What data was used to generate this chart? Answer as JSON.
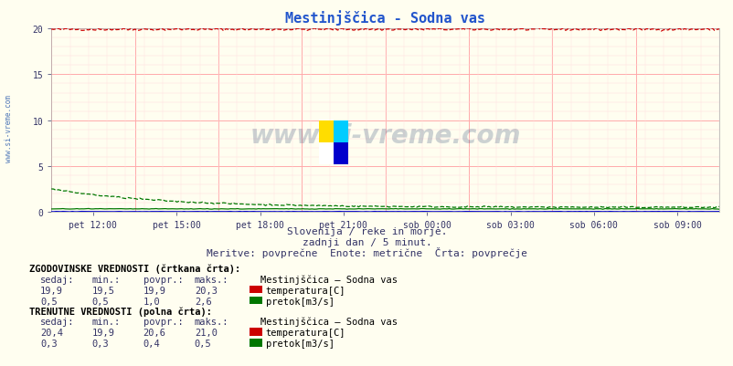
{
  "title": "Mestinjščica - Sodna vas",
  "bg_color": "#fffef0",
  "plot_bg_color": "#fffef0",
  "x_labels": [
    "pet 12:00",
    "pet 15:00",
    "pet 18:00",
    "pet 21:00",
    "sob 00:00",
    "sob 03:00",
    "sob 06:00",
    "sob 09:00"
  ],
  "ylim": [
    0,
    20
  ],
  "yticks": [
    0,
    5,
    10,
    15,
    20
  ],
  "temp_color": "#cc0000",
  "flow_color": "#007700",
  "height_color": "#0000cc",
  "grid_color_major": "#ffaaaa",
  "grid_color_minor": "#ffdddd",
  "watermark_text": "www.si-vreme.com",
  "subtitle1": "Slovenija / reke in morje.",
  "subtitle2": "zadnji dan / 5 minut.",
  "subtitle3": "Meritve: povprečne  Enote: metrične  Črta: povprečje",
  "legend_title_hist": "ZGODOVINSKE VREDNOSTI (črtkana črta):",
  "legend_title_curr": "TRENUTNE VREDNOSTI (polna črta):",
  "col_headers": [
    "sedaj:",
    "min.:",
    "povpr.:",
    "maks.:"
  ],
  "station_name": "Mestinjščica – Sodna vas",
  "hist_temp_vals": [
    "19,9",
    "19,5",
    "19,9",
    "20,3"
  ],
  "hist_flow_vals": [
    "0,5",
    "0,5",
    "1,0",
    "2,6"
  ],
  "curr_temp_vals": [
    "20,4",
    "19,9",
    "20,6",
    "21,0"
  ],
  "curr_flow_vals": [
    "0,3",
    "0,3",
    "0,4",
    "0,5"
  ],
  "temp_label": "temperatura[C]",
  "flow_label": "pretok[m3/s]",
  "n_points": 288,
  "title_color": "#2255cc",
  "text_color": "#333366",
  "axis_label_color": "#333366"
}
